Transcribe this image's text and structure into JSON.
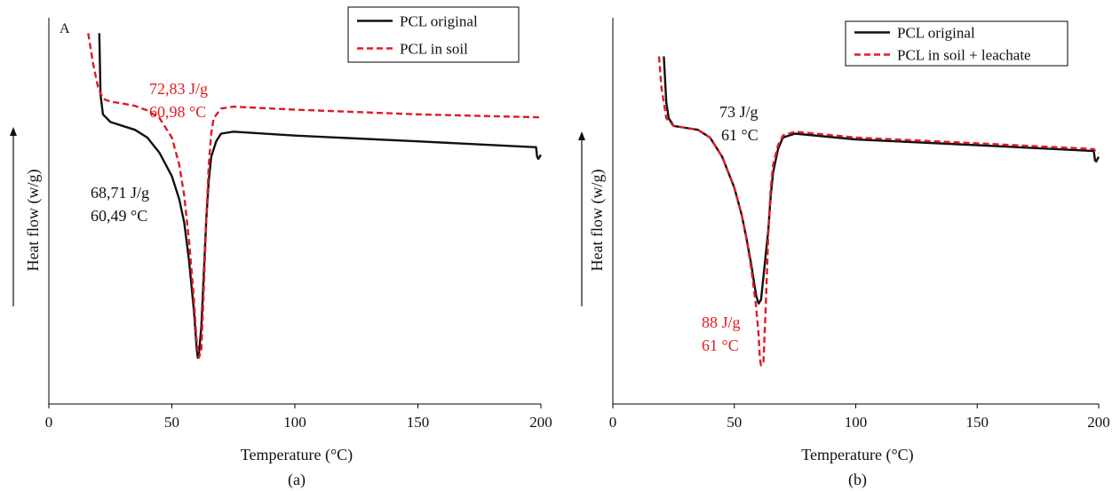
{
  "chart_data": [
    {
      "type": "line",
      "panel_label": "(a)",
      "corner_label": "A",
      "xlabel": "Temperature (°C)",
      "ylabel": "Heat flow (w/g)",
      "xlim": [
        0,
        200
      ],
      "x_ticks": [
        "0",
        "50",
        "100",
        "150",
        "200"
      ],
      "legend": {
        "placement": "top-right"
      },
      "series": [
        {
          "name": "PCL original",
          "color": "#111111",
          "style": "solid",
          "points": [
            [
              20.5,
              0.96
            ],
            [
              21,
              0.8
            ],
            [
              22,
              0.75
            ],
            [
              25,
              0.73
            ],
            [
              30,
              0.72
            ],
            [
              35,
              0.71
            ],
            [
              40,
              0.69
            ],
            [
              45,
              0.65
            ],
            [
              50,
              0.59
            ],
            [
              53,
              0.53
            ],
            [
              55,
              0.47
            ],
            [
              57,
              0.37
            ],
            [
              59,
              0.24
            ],
            [
              60,
              0.15
            ],
            [
              60.5,
              0.12
            ],
            [
              61,
              0.13
            ],
            [
              62,
              0.2
            ],
            [
              63,
              0.34
            ],
            [
              64,
              0.48
            ],
            [
              65,
              0.58
            ],
            [
              66,
              0.64
            ],
            [
              68,
              0.68
            ],
            [
              70,
              0.7
            ],
            [
              75,
              0.705
            ],
            [
              100,
              0.695
            ],
            [
              150,
              0.68
            ],
            [
              197,
              0.665
            ],
            [
              198,
              0.665
            ],
            [
              198.5,
              0.64
            ],
            [
              199,
              0.635
            ],
            [
              200,
              0.645
            ]
          ]
        },
        {
          "name": "PCL in soil",
          "color": "#e01b24",
          "style": "dashed",
          "points": [
            [
              16,
              0.96
            ],
            [
              18,
              0.88
            ],
            [
              20,
              0.82
            ],
            [
              22,
              0.79
            ],
            [
              25,
              0.783
            ],
            [
              30,
              0.778
            ],
            [
              35,
              0.772
            ],
            [
              40,
              0.76
            ],
            [
              45,
              0.74
            ],
            [
              50,
              0.69
            ],
            [
              53,
              0.62
            ],
            [
              55,
              0.54
            ],
            [
              57,
              0.42
            ],
            [
              59,
              0.27
            ],
            [
              60,
              0.17
            ],
            [
              61,
              0.12
            ],
            [
              62,
              0.14
            ],
            [
              63,
              0.3
            ],
            [
              64,
              0.48
            ],
            [
              65,
              0.62
            ],
            [
              66,
              0.7
            ],
            [
              67,
              0.74
            ],
            [
              70,
              0.765
            ],
            [
              75,
              0.77
            ],
            [
              100,
              0.762
            ],
            [
              150,
              0.75
            ],
            [
              200,
              0.742
            ]
          ]
        }
      ],
      "annotations": [
        {
          "text": "72,83 J/g",
          "series": "PCL in soil",
          "color": "#e01b24"
        },
        {
          "text": "60,98 °C",
          "series": "PCL in soil",
          "color": "#e01b24"
        },
        {
          "text": "68,71 J/g",
          "series": "PCL original",
          "color": "#111111"
        },
        {
          "text": "60,49 °C",
          "series": "PCL original",
          "color": "#111111"
        }
      ]
    },
    {
      "type": "line",
      "panel_label": "(b)",
      "xlabel": "Temperature (°C)",
      "ylabel": "Heat flow (w/g)",
      "xlim": [
        0,
        200
      ],
      "x_ticks": [
        "0",
        "50",
        "100",
        "150",
        "200"
      ],
      "legend": {
        "placement": "top-right"
      },
      "series": [
        {
          "name": "PCL original",
          "color": "#111111",
          "style": "solid",
          "points": [
            [
              21,
              0.9
            ],
            [
              22,
              0.78
            ],
            [
              23,
              0.74
            ],
            [
              25,
              0.72
            ],
            [
              30,
              0.715
            ],
            [
              35,
              0.71
            ],
            [
              40,
              0.69
            ],
            [
              45,
              0.64
            ],
            [
              50,
              0.56
            ],
            [
              53,
              0.49
            ],
            [
              55,
              0.43
            ],
            [
              57,
              0.36
            ],
            [
              59,
              0.28
            ],
            [
              60,
              0.26
            ],
            [
              61,
              0.27
            ],
            [
              62,
              0.33
            ],
            [
              64,
              0.45
            ],
            [
              65,
              0.54
            ],
            [
              66,
              0.6
            ],
            [
              68,
              0.66
            ],
            [
              70,
              0.69
            ],
            [
              75,
              0.7
            ],
            [
              100,
              0.685
            ],
            [
              150,
              0.67
            ],
            [
              198,
              0.655
            ],
            [
              198.5,
              0.63
            ],
            [
              199,
              0.628
            ],
            [
              200,
              0.64
            ]
          ]
        },
        {
          "name": "PCL in soil + leachate",
          "color": "#e01b24",
          "style": "dashed",
          "points": [
            [
              19,
              0.9
            ],
            [
              20,
              0.82
            ],
            [
              22,
              0.74
            ],
            [
              25,
              0.72
            ],
            [
              30,
              0.715
            ],
            [
              35,
              0.71
            ],
            [
              40,
              0.69
            ],
            [
              45,
              0.64
            ],
            [
              50,
              0.56
            ],
            [
              53,
              0.49
            ],
            [
              55,
              0.43
            ],
            [
              57,
              0.35
            ],
            [
              59,
              0.25
            ],
            [
              60,
              0.18
            ],
            [
              60.5,
              0.12
            ],
            [
              61,
              0.1
            ],
            [
              62,
              0.11
            ],
            [
              63,
              0.26
            ],
            [
              64,
              0.44
            ],
            [
              65,
              0.56
            ],
            [
              66,
              0.62
            ],
            [
              68,
              0.67
            ],
            [
              70,
              0.695
            ],
            [
              75,
              0.705
            ],
            [
              100,
              0.69
            ],
            [
              150,
              0.675
            ],
            [
              198,
              0.66
            ],
            [
              199,
              0.652
            ],
            [
              200,
              0.65
            ]
          ]
        }
      ],
      "annotations": [
        {
          "text": "73 J/g",
          "series": "PCL original",
          "color": "#111111"
        },
        {
          "text": "61 °C",
          "series": "PCL original",
          "color": "#111111"
        },
        {
          "text": "88 J/g",
          "series": "PCL in soil + leachate",
          "color": "#e01b24"
        },
        {
          "text": "61 °C",
          "series": "PCL in soil + leachate",
          "color": "#e01b24"
        }
      ]
    }
  ]
}
